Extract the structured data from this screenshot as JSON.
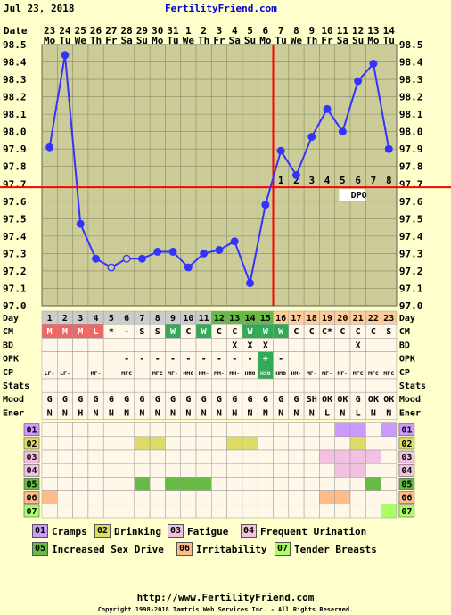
{
  "header": {
    "date": "Jul 23, 2018",
    "site": "FertilityFriend.com"
  },
  "chart_data": {
    "type": "line",
    "title": "",
    "x_dates": [
      "23",
      "24",
      "25",
      "26",
      "27",
      "28",
      "29",
      "30",
      "31",
      "1",
      "2",
      "3",
      "4",
      "5",
      "6",
      "7",
      "8",
      "9",
      "10",
      "11",
      "12",
      "13",
      "14"
    ],
    "x_weekdays": [
      "Mo",
      "Tu",
      "We",
      "Th",
      "Fr",
      "Sa",
      "Su",
      "Mo",
      "Tu",
      "We",
      "Th",
      "Fr",
      "Sa",
      "Su",
      "Mo",
      "Tu",
      "We",
      "Th",
      "Fr",
      "Sa",
      "Su",
      "Mo",
      "Tu"
    ],
    "cycle_days": [
      "1",
      "2",
      "3",
      "4",
      "5",
      "6",
      "7",
      "8",
      "9",
      "10",
      "11",
      "12",
      "13",
      "14",
      "15",
      "16",
      "17",
      "18",
      "19",
      "20",
      "21",
      "22",
      "23"
    ],
    "temperatures": [
      97.91,
      98.44,
      97.47,
      97.27,
      97.22,
      97.27,
      97.27,
      97.31,
      97.31,
      97.22,
      97.3,
      97.32,
      97.37,
      97.13,
      97.58,
      97.89,
      97.75,
      97.97,
      98.13,
      98.0,
      98.29,
      98.39,
      97.9
    ],
    "open_points": [
      4,
      5
    ],
    "ylim": [
      97.0,
      98.5
    ],
    "y_ticks": [
      "97.0",
      "97.1",
      "97.2",
      "97.3",
      "97.4",
      "97.5",
      "97.6",
      "97.7",
      "97.8",
      "97.9",
      "98.0",
      "98.1",
      "98.2",
      "98.3",
      "98.4",
      "98.5"
    ],
    "coverline": 97.68,
    "ovulation_day_index": 14,
    "dpo_labels": [
      "1",
      "2",
      "3",
      "4",
      "5",
      "6",
      "7",
      "8"
    ],
    "dpo_text": "DPO",
    "row_labels": {
      "date": "Date",
      "day": "Day",
      "cm": "CM",
      "bd": "BD",
      "opk": "OPK",
      "cp": "CP",
      "stats": "Stats",
      "mood": "Mood",
      "ener": "Ener"
    },
    "cm": [
      "M",
      "M",
      "M",
      "L",
      "*",
      "-",
      "S",
      "S",
      "W",
      "C",
      "W",
      "C",
      "C",
      "W",
      "W",
      "W",
      "C",
      "C",
      "C*",
      "C",
      "C",
      "C",
      "S"
    ],
    "bd": [
      "",
      "",
      "",
      "",
      "",
      "",
      "",
      "",
      "",
      "",
      "",
      "",
      "X",
      "X",
      "X",
      "",
      "",
      "",
      "",
      "",
      "X",
      "",
      ""
    ],
    "opk": [
      "",
      "",
      "",
      "",
      "",
      "-",
      "-",
      "-",
      "-",
      "-",
      "-",
      "-",
      "-",
      "-",
      "+",
      "-",
      "",
      "",
      "",
      "",
      "",
      "",
      ""
    ],
    "cp": [
      "LF-",
      "LF-",
      "",
      "MF-",
      "",
      "MFC",
      "",
      "MFC",
      "MF-",
      "MMC",
      "MM-",
      "MM-",
      "MM-",
      "HMO",
      "HSO",
      "HMO",
      "HM-",
      "MF-",
      "MF-",
      "MF-",
      "MFC",
      "MFC",
      "MFC"
    ],
    "stats": [
      "",
      "",
      "",
      "",
      "",
      "",
      "",
      "",
      "",
      "",
      "",
      "",
      "",
      "",
      "",
      "",
      "",
      "",
      "",
      "",
      "",
      "",
      ""
    ],
    "mood": [
      "G",
      "G",
      "G",
      "G",
      "G",
      "G",
      "G",
      "G",
      "G",
      "G",
      "G",
      "G",
      "G",
      "G",
      "G",
      "G",
      "G",
      "SH",
      "OK",
      "OK",
      "G",
      "OK",
      "OK"
    ],
    "ener": [
      "N",
      "N",
      "H",
      "N",
      "N",
      "N",
      "N",
      "N",
      "N",
      "N",
      "N",
      "N",
      "N",
      "N",
      "N",
      "N",
      "N",
      "N",
      "L",
      "N",
      "L",
      "N",
      "N"
    ],
    "symptom_rows": [
      "01",
      "02",
      "03",
      "04",
      "05",
      "06",
      "07"
    ],
    "symptoms": {
      "01": [
        19,
        20,
        22
      ],
      "02": [
        6,
        7,
        12,
        13,
        20
      ],
      "03": [
        18,
        19,
        20,
        21
      ],
      "04": [
        19,
        20
      ],
      "05": [
        6,
        8,
        9,
        10,
        21
      ],
      "06": [
        0,
        18,
        19
      ],
      "07": [
        22
      ]
    }
  },
  "legend": [
    {
      "code": "01",
      "label": "Cramps",
      "color": "#cc99ff"
    },
    {
      "code": "02",
      "label": "Drinking",
      "color": "#dddd66"
    },
    {
      "code": "03",
      "label": "Fatigue",
      "color": "#f2c0e0"
    },
    {
      "code": "04",
      "label": "Frequent Urination",
      "color": "#f2c0e0"
    },
    {
      "code": "05",
      "label": "Increased Sex Drive",
      "color": "#66bb44"
    },
    {
      "code": "06",
      "label": "Irritability",
      "color": "#ffbb88"
    },
    {
      "code": "07",
      "label": "Tender Breasts",
      "color": "#aaff66"
    }
  ],
  "footer": {
    "url": "http://www.FertilityFriend.com",
    "copyright": "Copyright 1998-2018 Tamtris Web Services Inc. - All Rights Reserved."
  },
  "colors": {
    "background": "#ffffcc",
    "grid_bg": "#cccc99",
    "grid_line": "#888866",
    "line": "#3333ff",
    "coverline": "#ff0000",
    "day_gray": "#cccccc",
    "day_green": "#66bb44",
    "day_orange": "#ffcc99",
    "cm_red": "#ee6666",
    "cm_green": "#33aa55",
    "row_bg": "#fff8e8"
  }
}
